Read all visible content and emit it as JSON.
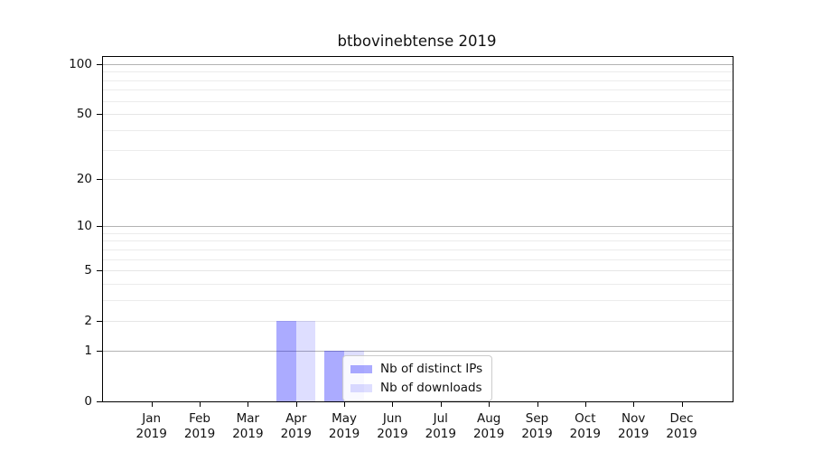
{
  "title": "btbovinebtense 2019",
  "chart_data": {
    "type": "bar",
    "title": "btbovinebtense 2019",
    "x_tick_labels": [
      {
        "month": "Jan",
        "year": "2019"
      },
      {
        "month": "Feb",
        "year": "2019"
      },
      {
        "month": "Mar",
        "year": "2019"
      },
      {
        "month": "Apr",
        "year": "2019"
      },
      {
        "month": "May",
        "year": "2019"
      },
      {
        "month": "Jun",
        "year": "2019"
      },
      {
        "month": "Jul",
        "year": "2019"
      },
      {
        "month": "Aug",
        "year": "2019"
      },
      {
        "month": "Sep",
        "year": "2019"
      },
      {
        "month": "Oct",
        "year": "2019"
      },
      {
        "month": "Nov",
        "year": "2019"
      },
      {
        "month": "Dec",
        "year": "2019"
      }
    ],
    "series": [
      {
        "name": "Nb of distinct IPs",
        "color": "rgba(0,0,255,0.33)",
        "values": [
          0,
          0,
          0,
          2,
          1,
          0,
          0,
          0,
          0,
          0,
          0,
          0
        ]
      },
      {
        "name": "Nb of downloads",
        "color": "rgba(0,0,255,0.13)",
        "values": [
          0,
          0,
          0,
          2,
          1,
          0,
          0,
          0,
          0,
          0,
          0,
          0
        ]
      }
    ],
    "y_ticks": [
      0,
      1,
      2,
      5,
      10,
      20,
      50,
      100
    ],
    "y_minor_gridline_values": [
      3,
      4,
      6,
      7,
      8,
      9,
      30,
      40,
      60,
      70,
      80,
      90
    ],
    "y_major_gridline_values": [
      1,
      10,
      100
    ],
    "ylim": [
      0,
      111
    ],
    "y_scale": "log(1+v)",
    "grid": true,
    "legend_position": "inside lower-center",
    "colors": {
      "major_gridline": "#b3b3b3",
      "minor_gridline": "#ececec",
      "labeled_gridline": "#e6e6e6",
      "axis": "#000000",
      "legend_border": "#cccccc"
    }
  }
}
